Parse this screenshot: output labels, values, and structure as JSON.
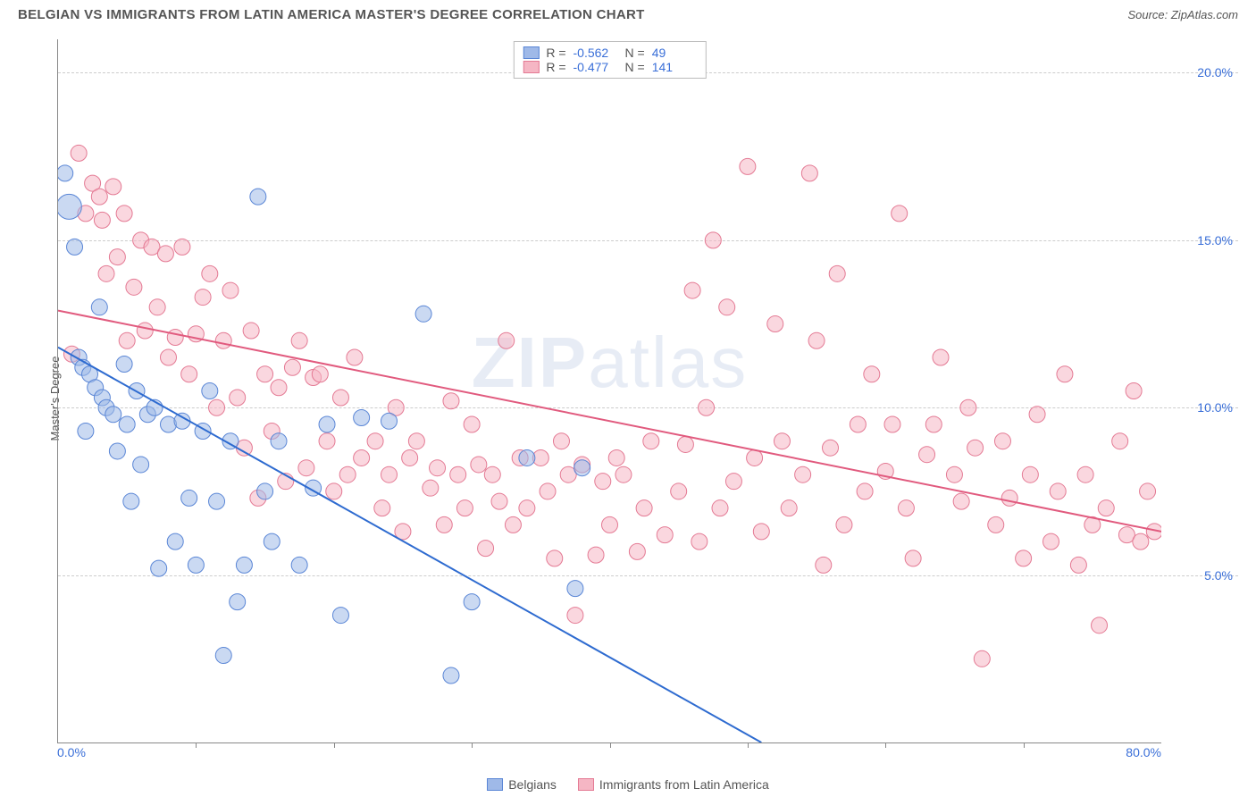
{
  "header": {
    "title": "BELGIAN VS IMMIGRANTS FROM LATIN AMERICA MASTER'S DEGREE CORRELATION CHART",
    "source": "Source: ZipAtlas.com"
  },
  "watermark": {
    "zip": "ZIP",
    "atlas": "atlas"
  },
  "chart": {
    "type": "scatter",
    "ylabel": "Master's Degree",
    "xlim": [
      0,
      80
    ],
    "ylim": [
      0,
      21
    ],
    "xtick_positions": [
      10,
      20,
      30,
      40,
      50,
      60,
      70
    ],
    "xaxis_min_label": "0.0%",
    "xaxis_max_label": "80.0%",
    "ytick_positions": [
      5,
      10,
      15,
      20
    ],
    "ytick_labels": [
      "5.0%",
      "10.0%",
      "15.0%",
      "20.0%"
    ],
    "background_color": "#ffffff",
    "grid_color": "#cccccc",
    "axis_color": "#888888",
    "tick_font_color": "#3a6fd8",
    "label_font_color": "#555555",
    "marker_radius": 9,
    "marker_opacity": 0.55,
    "line_width": 2,
    "series": [
      {
        "key": "belgians",
        "label": "Belgians",
        "fill_color": "#9fb9e8",
        "stroke_color": "#5a86d6",
        "line_color": "#2e6bd0",
        "R": "-0.562",
        "N": "49",
        "trend": {
          "x1": 0,
          "y1": 11.8,
          "x2": 51,
          "y2": 0
        },
        "points": [
          [
            0.5,
            17.0
          ],
          [
            0.8,
            16.0,
            14
          ],
          [
            1.2,
            14.8
          ],
          [
            1.5,
            11.5
          ],
          [
            1.8,
            11.2
          ],
          [
            2.0,
            9.3
          ],
          [
            2.3,
            11.0
          ],
          [
            2.7,
            10.6
          ],
          [
            3.0,
            13.0
          ],
          [
            3.2,
            10.3
          ],
          [
            3.5,
            10.0
          ],
          [
            4.0,
            9.8
          ],
          [
            4.3,
            8.7
          ],
          [
            4.8,
            11.3
          ],
          [
            5.0,
            9.5
          ],
          [
            5.3,
            7.2
          ],
          [
            5.7,
            10.5
          ],
          [
            6.0,
            8.3
          ],
          [
            6.5,
            9.8
          ],
          [
            7.0,
            10.0
          ],
          [
            7.3,
            5.2
          ],
          [
            8.0,
            9.5
          ],
          [
            8.5,
            6.0
          ],
          [
            9.0,
            9.6
          ],
          [
            9.5,
            7.3
          ],
          [
            10.0,
            5.3
          ],
          [
            10.5,
            9.3
          ],
          [
            11.0,
            10.5
          ],
          [
            11.5,
            7.2
          ],
          [
            12.0,
            2.6
          ],
          [
            12.5,
            9.0
          ],
          [
            13.0,
            4.2
          ],
          [
            13.5,
            5.3
          ],
          [
            14.5,
            16.3
          ],
          [
            15.0,
            7.5
          ],
          [
            15.5,
            6.0
          ],
          [
            16.0,
            9.0
          ],
          [
            17.5,
            5.3
          ],
          [
            18.5,
            7.6
          ],
          [
            19.5,
            9.5
          ],
          [
            20.5,
            3.8
          ],
          [
            22.0,
            9.7
          ],
          [
            24.0,
            9.6
          ],
          [
            26.5,
            12.8
          ],
          [
            28.5,
            2.0
          ],
          [
            30.0,
            4.2
          ],
          [
            34.0,
            8.5
          ],
          [
            37.5,
            4.6
          ],
          [
            38.0,
            8.2
          ]
        ]
      },
      {
        "key": "latin",
        "label": "Immigrants from Latin America",
        "fill_color": "#f5b6c4",
        "stroke_color": "#e47a94",
        "line_color": "#e15a7e",
        "R": "-0.477",
        "N": "141",
        "trend": {
          "x1": 0,
          "y1": 12.9,
          "x2": 80,
          "y2": 6.3
        },
        "points": [
          [
            1.0,
            11.6
          ],
          [
            1.5,
            17.6
          ],
          [
            2.0,
            15.8
          ],
          [
            2.5,
            16.7
          ],
          [
            3.0,
            16.3
          ],
          [
            3.2,
            15.6
          ],
          [
            3.5,
            14.0
          ],
          [
            4.0,
            16.6
          ],
          [
            4.3,
            14.5
          ],
          [
            4.8,
            15.8
          ],
          [
            5.0,
            12.0
          ],
          [
            5.5,
            13.6
          ],
          [
            6.0,
            15.0
          ],
          [
            6.3,
            12.3
          ],
          [
            6.8,
            14.8
          ],
          [
            7.2,
            13.0
          ],
          [
            7.8,
            14.6
          ],
          [
            8.0,
            11.5
          ],
          [
            8.5,
            12.1
          ],
          [
            9.0,
            14.8
          ],
          [
            9.5,
            11.0
          ],
          [
            10.0,
            12.2
          ],
          [
            10.5,
            13.3
          ],
          [
            11.0,
            14.0
          ],
          [
            11.5,
            10.0
          ],
          [
            12.0,
            12.0
          ],
          [
            12.5,
            13.5
          ],
          [
            13.0,
            10.3
          ],
          [
            13.5,
            8.8
          ],
          [
            14.0,
            12.3
          ],
          [
            14.5,
            7.3
          ],
          [
            15.0,
            11.0
          ],
          [
            15.5,
            9.3
          ],
          [
            16.0,
            10.6
          ],
          [
            16.5,
            7.8
          ],
          [
            17.0,
            11.2
          ],
          [
            17.5,
            12.0
          ],
          [
            18.0,
            8.2
          ],
          [
            18.5,
            10.9
          ],
          [
            19.0,
            11.0
          ],
          [
            19.5,
            9.0
          ],
          [
            20.0,
            7.5
          ],
          [
            20.5,
            10.3
          ],
          [
            21.0,
            8.0
          ],
          [
            21.5,
            11.5
          ],
          [
            22.0,
            8.5
          ],
          [
            23.0,
            9.0
          ],
          [
            23.5,
            7.0
          ],
          [
            24.0,
            8.0
          ],
          [
            24.5,
            10.0
          ],
          [
            25.0,
            6.3
          ],
          [
            25.5,
            8.5
          ],
          [
            26.0,
            9.0
          ],
          [
            27.0,
            7.6
          ],
          [
            27.5,
            8.2
          ],
          [
            28.0,
            6.5
          ],
          [
            28.5,
            10.2
          ],
          [
            29.0,
            8.0
          ],
          [
            29.5,
            7.0
          ],
          [
            30.0,
            9.5
          ],
          [
            30.5,
            8.3
          ],
          [
            31.0,
            5.8
          ],
          [
            31.5,
            8.0
          ],
          [
            32.0,
            7.2
          ],
          [
            32.5,
            12.0
          ],
          [
            33.0,
            6.5
          ],
          [
            33.5,
            8.5
          ],
          [
            34.0,
            7.0
          ],
          [
            35.0,
            8.5
          ],
          [
            35.5,
            7.5
          ],
          [
            36.0,
            5.5
          ],
          [
            36.5,
            9.0
          ],
          [
            37.0,
            8.0
          ],
          [
            37.5,
            3.8
          ],
          [
            38.0,
            8.3
          ],
          [
            39.0,
            5.6
          ],
          [
            39.5,
            7.8
          ],
          [
            40.0,
            6.5
          ],
          [
            40.5,
            8.5
          ],
          [
            41.0,
            8.0
          ],
          [
            42.0,
            5.7
          ],
          [
            42.5,
            7.0
          ],
          [
            43.0,
            9.0
          ],
          [
            44.0,
            6.2
          ],
          [
            45.0,
            7.5
          ],
          [
            45.5,
            8.9
          ],
          [
            46.0,
            13.5
          ],
          [
            46.5,
            6.0
          ],
          [
            47.0,
            10.0
          ],
          [
            47.5,
            15.0
          ],
          [
            48.0,
            7.0
          ],
          [
            48.5,
            13.0
          ],
          [
            49.0,
            7.8
          ],
          [
            50.0,
            17.2
          ],
          [
            50.5,
            8.5
          ],
          [
            51.0,
            6.3
          ],
          [
            52.0,
            12.5
          ],
          [
            52.5,
            9.0
          ],
          [
            53.0,
            7.0
          ],
          [
            54.0,
            8.0
          ],
          [
            54.5,
            17.0
          ],
          [
            55.0,
            12.0
          ],
          [
            55.5,
            5.3
          ],
          [
            56.0,
            8.8
          ],
          [
            56.5,
            14.0
          ],
          [
            57.0,
            6.5
          ],
          [
            58.0,
            9.5
          ],
          [
            58.5,
            7.5
          ],
          [
            59.0,
            11.0
          ],
          [
            60.0,
            8.1
          ],
          [
            60.5,
            9.5
          ],
          [
            61.0,
            15.8
          ],
          [
            61.5,
            7.0
          ],
          [
            62.0,
            5.5
          ],
          [
            63.0,
            8.6
          ],
          [
            63.5,
            9.5
          ],
          [
            64.0,
            11.5
          ],
          [
            65.0,
            8.0
          ],
          [
            65.5,
            7.2
          ],
          [
            66.0,
            10.0
          ],
          [
            66.5,
            8.8
          ],
          [
            67.0,
            2.5
          ],
          [
            68.0,
            6.5
          ],
          [
            68.5,
            9.0
          ],
          [
            69.0,
            7.3
          ],
          [
            70.0,
            5.5
          ],
          [
            70.5,
            8.0
          ],
          [
            71.0,
            9.8
          ],
          [
            72.0,
            6.0
          ],
          [
            72.5,
            7.5
          ],
          [
            73.0,
            11.0
          ],
          [
            74.0,
            5.3
          ],
          [
            74.5,
            8.0
          ],
          [
            75.0,
            6.5
          ],
          [
            75.5,
            3.5
          ],
          [
            76.0,
            7.0
          ],
          [
            77.0,
            9.0
          ],
          [
            77.5,
            6.2
          ],
          [
            78.0,
            10.5
          ],
          [
            78.5,
            6.0
          ],
          [
            79.0,
            7.5
          ],
          [
            79.5,
            6.3
          ]
        ]
      }
    ]
  }
}
